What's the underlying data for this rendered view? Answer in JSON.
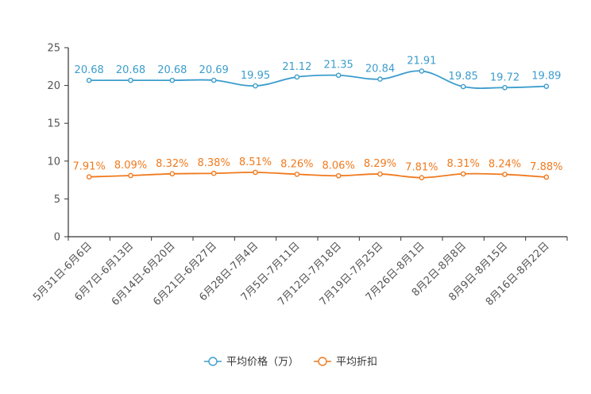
{
  "chart_data": {
    "type": "line",
    "categories": [
      "5月31日-6月6日",
      "6月7日-6月13日",
      "6月14日-6月20日",
      "6月21日-6月27日",
      "6月28日-7月4日",
      "7月5日-7月11日",
      "7月12日-7月18日",
      "7月19日-7月25日",
      "7月26日-8月1日",
      "8月2日-8月8日",
      "8月9日-8月15日",
      "8月16日-8月22日"
    ],
    "series": [
      {
        "name": "平均价格（万）",
        "color": "#3c9dcc",
        "values": [
          20.68,
          20.68,
          20.68,
          20.69,
          19.95,
          21.12,
          21.35,
          20.84,
          21.91,
          19.85,
          19.72,
          19.89
        ],
        "labels": [
          "20.68",
          "20.68",
          "20.68",
          "20.69",
          "19.95",
          "21.12",
          "21.35",
          "20.84",
          "21.91",
          "19.85",
          "19.72",
          "19.89"
        ]
      },
      {
        "name": "平均折扣",
        "color": "#f07a1e",
        "values": [
          7.91,
          8.09,
          8.32,
          8.38,
          8.51,
          8.26,
          8.06,
          8.29,
          7.81,
          8.31,
          8.24,
          7.88
        ],
        "labels": [
          "7.91%",
          "8.09%",
          "8.32%",
          "8.38%",
          "8.51%",
          "8.26%",
          "8.06%",
          "8.29%",
          "7.81%",
          "8.31%",
          "8.24%",
          "7.88%"
        ]
      }
    ],
    "y_ticks": [
      "0",
      "5",
      "10",
      "15",
      "20",
      "25"
    ],
    "ylim": [
      0,
      25
    ],
    "title": "",
    "xlabel": "",
    "ylabel": "",
    "legend_position": "bottom",
    "grid": false
  }
}
